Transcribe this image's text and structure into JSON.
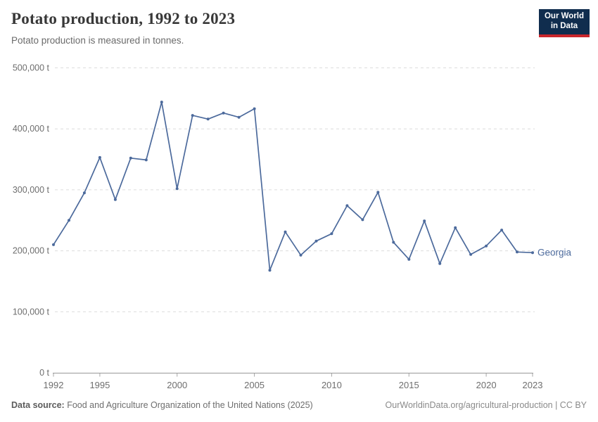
{
  "header": {
    "title": "Potato production, 1992 to 2023",
    "subtitle": "Potato production is measured in tonnes."
  },
  "logo": {
    "line1": "Our World",
    "line2": "in Data"
  },
  "chart_data": {
    "type": "line",
    "title": "Potato production, 1992 to 2023",
    "ylabel": "",
    "unit": "t",
    "xlim": [
      1992,
      2023
    ],
    "ylim": [
      0,
      500000
    ],
    "grid": "horizontal-dashed",
    "legend": "end-of-line-label",
    "x": [
      1992,
      1993,
      1994,
      1995,
      1996,
      1997,
      1998,
      1999,
      2000,
      2001,
      2002,
      2003,
      2004,
      2005,
      2006,
      2007,
      2008,
      2009,
      2010,
      2011,
      2012,
      2013,
      2014,
      2015,
      2016,
      2017,
      2018,
      2019,
      2020,
      2021,
      2022,
      2023
    ],
    "series": [
      {
        "name": "Georgia",
        "color": "#4C6A9C",
        "values": [
          210000,
          250000,
          295000,
          353000,
          284000,
          352000,
          349000,
          444000,
          302000,
          422000,
          416000,
          426000,
          419000,
          433000,
          168000,
          231000,
          193000,
          216000,
          228000,
          274000,
          251000,
          296000,
          214000,
          186000,
          249000,
          179000,
          238000,
          194000,
          208000,
          234000,
          198000,
          197000
        ]
      }
    ],
    "xticks": [
      1992,
      1995,
      2000,
      2005,
      2010,
      2015,
      2020,
      2023
    ],
    "yticks": [
      {
        "value": 0,
        "label": "0 t"
      },
      {
        "value": 100000,
        "label": "100,000 t"
      },
      {
        "value": 200000,
        "label": "200,000 t"
      },
      {
        "value": 300000,
        "label": "300,000 t"
      },
      {
        "value": 400000,
        "label": "400,000 t"
      },
      {
        "value": 500000,
        "label": "500,000 t"
      }
    ]
  },
  "footer": {
    "source_label": "Data source:",
    "source_text": " Food and Agriculture Organization of the United Nations (2025)",
    "credit": "OurWorldinData.org/agricultural-production | CC BY"
  },
  "colors": {
    "line": "#4C6A9C",
    "entity_label": "#4C6A9C",
    "logo_bg": "#102D4E",
    "logo_bar": "#C9262C",
    "grid": "#DCDCDC",
    "axis": "#999999",
    "tick": "#A5A5A5",
    "tick_label": "#6E6E6E",
    "title": "#383838",
    "subtitle": "#6B6B6B"
  }
}
